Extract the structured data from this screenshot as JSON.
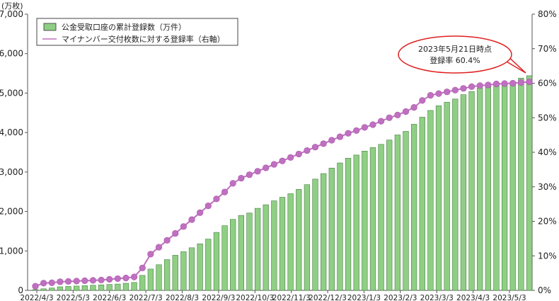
{
  "chart_data": {
    "type": "bar+line",
    "left_axis": {
      "unit_label": "(万枚)",
      "ticks": [
        "0",
        "1,000",
        "2,000",
        "3,000",
        "4,000",
        "5,000",
        "6,000",
        "7,000"
      ],
      "ylim": [
        0,
        7000
      ]
    },
    "right_axis": {
      "ticks": [
        "0%",
        "10%",
        "20%",
        "30%",
        "40%",
        "50%",
        "60%",
        "70%",
        "80%"
      ],
      "ylim": [
        0,
        80
      ]
    },
    "x_tick_labels": [
      "2022/4/3",
      "2022/5/3",
      "2022/6/3",
      "2022/7/3",
      "2022/8/3",
      "2022/9/3",
      "2022/10/3",
      "2022/11/3",
      "2022/12/3",
      "2023/1/3",
      "2023/2/3",
      "2023/3/3",
      "2023/4/3",
      "2023/5/3"
    ],
    "series": [
      {
        "name": "公金受取口座の累計登録数（万件）",
        "type": "bar",
        "axis": "left",
        "color": "#8fcf84",
        "values": [
          20,
          40,
          60,
          90,
          100,
          110,
          120,
          130,
          140,
          150,
          160,
          180,
          200,
          380,
          540,
          650,
          780,
          890,
          980,
          1080,
          1180,
          1300,
          1470,
          1640,
          1800,
          1900,
          1960,
          2080,
          2170,
          2270,
          2360,
          2450,
          2560,
          2680,
          2820,
          2960,
          3100,
          3230,
          3350,
          3430,
          3530,
          3620,
          3700,
          3810,
          3940,
          4030,
          4210,
          4390,
          4560,
          4680,
          4770,
          4850,
          4960,
          5040,
          5130,
          5190,
          5240,
          5260,
          5290,
          5380,
          5440
        ]
      },
      {
        "name": "マイナンバー交付枚数に対する登録率（右軸）",
        "type": "line",
        "axis": "right",
        "color": "#c070c0",
        "values": [
          1.2,
          2.1,
          2.2,
          2.5,
          2.6,
          2.7,
          2.8,
          2.9,
          3.0,
          3.2,
          3.4,
          3.6,
          3.9,
          6.5,
          10.5,
          12.5,
          14.5,
          16.5,
          18.5,
          20.5,
          22.5,
          24.5,
          26.5,
          28.5,
          31.0,
          32.5,
          33.5,
          34.5,
          35.5,
          36.5,
          37.5,
          38.5,
          39.5,
          40.5,
          41.5,
          42.5,
          43.5,
          44.5,
          45.5,
          46.3,
          47.2,
          48.0,
          49.0,
          50.0,
          50.8,
          51.8,
          53.0,
          55.0,
          56.5,
          57.0,
          57.5,
          58.0,
          58.5,
          59.0,
          59.3,
          59.5,
          59.8,
          59.9,
          60.0,
          60.2,
          60.4
        ]
      }
    ],
    "legend_position": "top-left",
    "annotation": {
      "line1": "2023年5月21日時点",
      "line2": "登録率 60.4%"
    }
  }
}
